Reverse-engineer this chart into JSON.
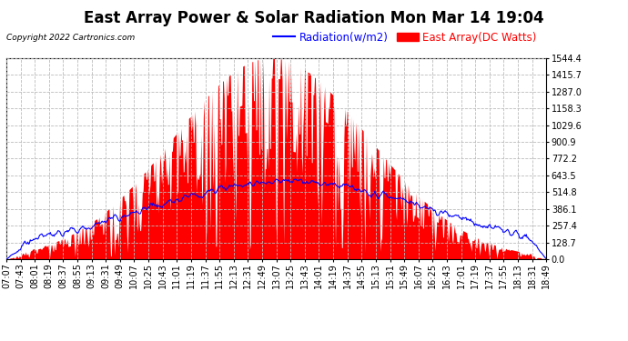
{
  "title": "East Array Power & Solar Radiation Mon Mar 14 19:04",
  "copyright": "Copyright 2022 Cartronics.com",
  "legend_radiation": "Radiation(w/m2)",
  "legend_east": "East Array(DC Watts)",
  "radiation_color": "blue",
  "east_color": "red",
  "background_color": "#ffffff",
  "ymin": 0.0,
  "ymax": 1544.4,
  "yticks": [
    0.0,
    128.7,
    257.4,
    386.1,
    514.8,
    643.5,
    772.2,
    900.9,
    1029.6,
    1158.3,
    1287.0,
    1415.7,
    1544.4
  ],
  "xtick_labels": [
    "07:07",
    "07:43",
    "08:01",
    "08:19",
    "08:37",
    "08:55",
    "09:13",
    "09:31",
    "09:49",
    "10:07",
    "10:25",
    "10:43",
    "11:01",
    "11:19",
    "11:37",
    "11:55",
    "12:13",
    "12:31",
    "12:49",
    "13:07",
    "13:25",
    "13:43",
    "14:01",
    "14:19",
    "14:37",
    "14:55",
    "15:13",
    "15:31",
    "15:49",
    "16:07",
    "16:25",
    "16:43",
    "17:01",
    "17:19",
    "17:37",
    "17:55",
    "18:13",
    "18:31",
    "18:49"
  ],
  "n_xticks": 39,
  "grid_color": "#bbbbbb",
  "title_fontsize": 12,
  "tick_fontsize": 7,
  "copyright_fontsize": 6.5,
  "legend_fontsize": 8.5
}
